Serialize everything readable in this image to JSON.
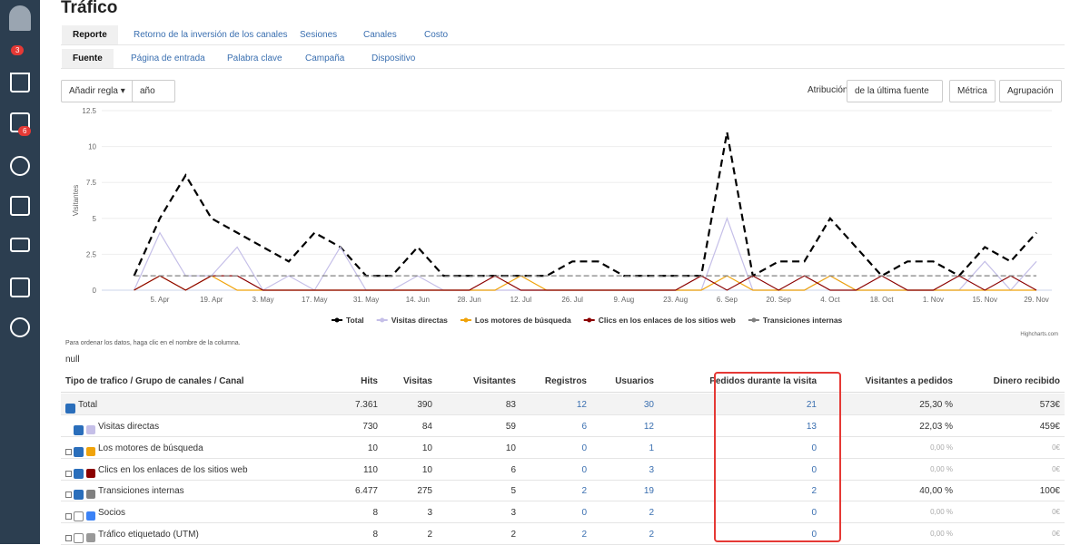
{
  "sidebar": {
    "badges": [
      "3",
      "6"
    ]
  },
  "header": {
    "title": "Tráfico"
  },
  "tabs": [
    "Reporte",
    "Retorno de la inversión de los canales",
    "Sesiones",
    "Canales",
    "Costo"
  ],
  "subtabs": [
    "Fuente",
    "Página de entrada",
    "Palabra clave",
    "Campaña",
    "Dispositivo"
  ],
  "controls": {
    "add_rule": "Añadir regla",
    "period": "año",
    "attribution_label": "Atribución",
    "attribution": "de la última fuente",
    "metric": "Métrica",
    "grouping": "Agrupación"
  },
  "chart_data": {
    "type": "line",
    "y_label": "Visitantes",
    "credit": "Highcharts.com",
    "categories": [
      null,
      "5. Apr",
      null,
      "19. Apr",
      null,
      "3. May",
      null,
      "17. May",
      null,
      "31. May",
      null,
      "14. Jun",
      null,
      "28. Jun",
      null,
      "12. Jul",
      null,
      "26. Jul",
      null,
      "9. Aug",
      null,
      "23. Aug",
      null,
      "6. Sep",
      null,
      "20. Sep",
      null,
      "4. Oct",
      null,
      "18. Oct",
      null,
      "1. Nov",
      null,
      "15. Nov",
      null,
      "29. Nov"
    ],
    "ylim": [
      0,
      12.5
    ],
    "yticks": [
      0,
      2.5,
      5,
      7.5,
      10,
      12.5
    ],
    "series": [
      {
        "name": "Total",
        "color": "#000000",
        "values": [
          1,
          5,
          8,
          5,
          4,
          3,
          2,
          4,
          3,
          1,
          1,
          3,
          1,
          1,
          1,
          1,
          1,
          2,
          2,
          1,
          1,
          1,
          1,
          11,
          1,
          2,
          2,
          5,
          3,
          1,
          2,
          2,
          1,
          3,
          2,
          4
        ]
      },
      {
        "name": "Visitas directas",
        "color": "#c5bfe8",
        "values": [
          0,
          4,
          1,
          1,
          3,
          0,
          1,
          0,
          3,
          0,
          0,
          1,
          0,
          0,
          0,
          0,
          0,
          0,
          0,
          0,
          0,
          0,
          0,
          5,
          0,
          0,
          0,
          1,
          0,
          0,
          0,
          0,
          0,
          2,
          0,
          2
        ]
      },
      {
        "name": "Los motores de búsqueda",
        "color": "#f0a30a",
        "values": [
          0,
          1,
          0,
          1,
          0,
          0,
          0,
          0,
          0,
          0,
          0,
          0,
          0,
          0,
          0,
          1,
          0,
          0,
          0,
          0,
          0,
          0,
          0,
          1,
          0,
          0,
          0,
          1,
          0,
          0,
          0,
          0,
          0,
          0,
          0,
          0
        ]
      },
      {
        "name": "Clics en los enlaces de los sitios web",
        "color": "#8b0000",
        "values": [
          0,
          1,
          0,
          1,
          1,
          0,
          0,
          0,
          0,
          0,
          0,
          0,
          0,
          0,
          1,
          0,
          0,
          0,
          0,
          0,
          0,
          0,
          1,
          0,
          1,
          0,
          1,
          0,
          0,
          1,
          0,
          0,
          1,
          0,
          1,
          0
        ]
      },
      {
        "name": "Transiciones internas",
        "color": "#808080",
        "values": [
          1,
          1,
          1,
          1,
          1,
          1,
          1,
          1,
          1,
          1,
          1,
          1,
          1,
          1,
          1,
          1,
          1,
          1,
          1,
          1,
          1,
          1,
          1,
          1,
          1,
          1,
          1,
          1,
          1,
          1,
          1,
          1,
          1,
          1,
          1,
          1
        ]
      }
    ]
  },
  "table": {
    "note": "Para ordenar los datos, haga clic en el nombre de la columna.",
    "filter": "null",
    "columns": [
      "Tipo de trafico / Grupo de canales / Canal",
      "Hits",
      "Visitas",
      "Visitantes",
      "Registros",
      "Usuarios",
      "Pedidos durante la visita",
      "Visitantes a pedidos",
      "Dinero recibido"
    ],
    "rows": [
      [
        "Total",
        "7.361",
        "390",
        "83",
        "12",
        "30",
        "21",
        "25,30 %",
        "573€"
      ],
      [
        "Visitas directas",
        "730",
        "84",
        "59",
        "6",
        "12",
        "13",
        "22,03 %",
        "459€"
      ],
      [
        "Los motores de búsqueda",
        "10",
        "10",
        "10",
        "0",
        "1",
        "0",
        "0,00 %",
        "0€"
      ],
      [
        "Clics en los enlaces de los sitios web",
        "110",
        "10",
        "6",
        "0",
        "3",
        "0",
        "0,00 %",
        "0€"
      ],
      [
        "Transiciones internas",
        "6.477",
        "275",
        "5",
        "2",
        "19",
        "2",
        "40,00 %",
        "100€"
      ],
      [
        "Socios",
        "8",
        "3",
        "3",
        "0",
        "2",
        "0",
        "0,00 %",
        "0€"
      ],
      [
        "Tráfico etiquetado (UTM)",
        "8",
        "2",
        "2",
        "2",
        "2",
        "0",
        "0,00 %",
        "0€"
      ]
    ]
  }
}
